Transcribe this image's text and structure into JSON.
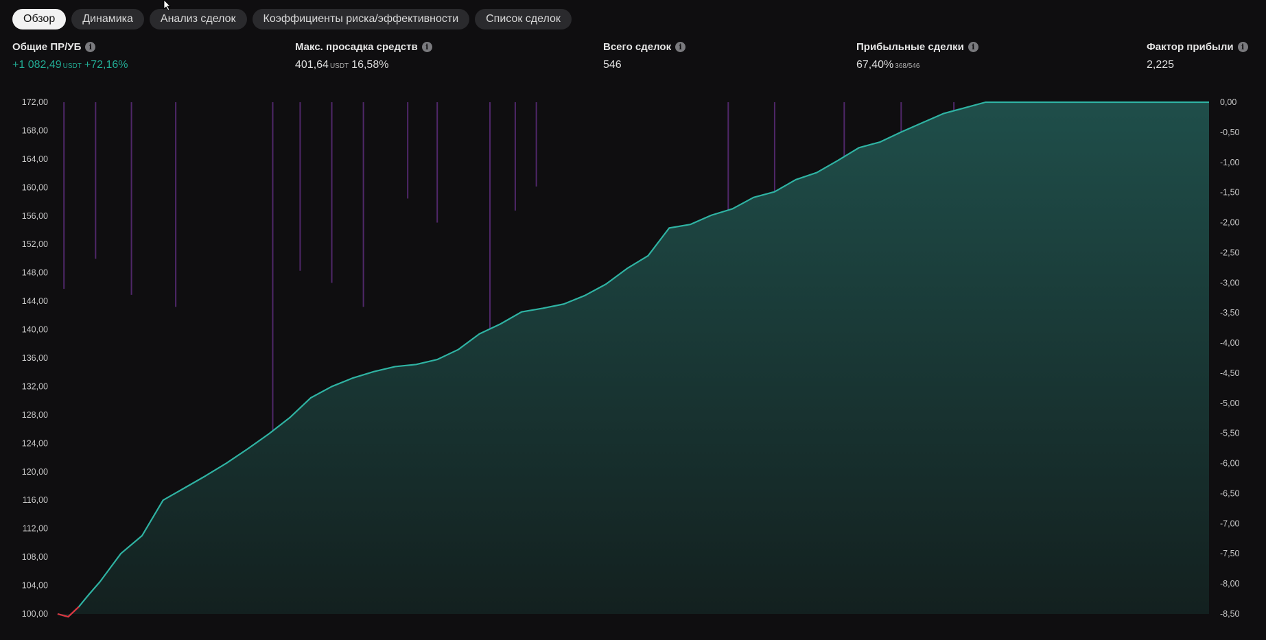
{
  "tabs": [
    "Обзор",
    "Динамика",
    "Анализ сделок",
    "Коэффициенты риска/эффективности",
    "Список сделок"
  ],
  "stats": {
    "net_profit": {
      "label": "Общие ПР/УБ",
      "value": "+1 082,49",
      "unit": "USDT",
      "extra": "+72,16%"
    },
    "max_drawdown": {
      "label": "Макс. просадка средств",
      "value": "401,64",
      "unit": "USDT",
      "extra": "16,58%"
    },
    "total_trades": {
      "label": "Всего сделок",
      "value": "546"
    },
    "profitable": {
      "label": "Прибыльные сделки",
      "value": "67,40%",
      "extra": "368/546"
    },
    "profit_factor": {
      "label": "Фактор прибыли",
      "value": "2,225"
    }
  },
  "colors": {
    "equity_line": "#2fb3a3",
    "equity_fill_top": "#1f4e4a",
    "equity_fill_bottom": "#13201f",
    "drawdown_bars": "#5a2b79",
    "loss_segment": "#e0313d",
    "background": "#0f0e10"
  },
  "chart_data": {
    "type": "area",
    "left_axis": {
      "ticks": [
        "172,00",
        "168,00",
        "164,00",
        "160,00",
        "156,00",
        "152,00",
        "148,00",
        "144,00",
        "140,00",
        "136,00",
        "132,00",
        "128,00",
        "124,00",
        "120,00",
        "116,00",
        "112,00",
        "108,00",
        "104,00",
        "100,00"
      ],
      "range": [
        100,
        172
      ]
    },
    "right_axis": {
      "ticks": [
        "0,00",
        "-0,50",
        "-1,00",
        "-1,50",
        "-2,00",
        "-2,50",
        "-3,00",
        "-3,50",
        "-4,00",
        "-4,50",
        "-5,00",
        "-5,50",
        "-6,00",
        "-6,50",
        "-7,00",
        "-7,50",
        "-8,00",
        "-8,50"
      ],
      "range": [
        -8.5,
        0
      ]
    },
    "equity_series": {
      "x": [
        0,
        5,
        10,
        15,
        20,
        25,
        30,
        40,
        50,
        60,
        70,
        80,
        90,
        100,
        110,
        120,
        130,
        140,
        150,
        160,
        170,
        180,
        190,
        200,
        210,
        220,
        230,
        240,
        250,
        260,
        270,
        280,
        290,
        300,
        310,
        320,
        330,
        340,
        350,
        360,
        370,
        380,
        390,
        400,
        410,
        420,
        430,
        440,
        450,
        460,
        470,
        480,
        490,
        500,
        505,
        510,
        520,
        530,
        540,
        546
      ],
      "values": [
        100.0,
        99.6,
        101.0,
        102.8,
        104.5,
        106.5,
        108.5,
        111.0,
        116.0,
        117.7,
        119.4,
        121.2,
        123.2,
        125.3,
        127.6,
        130.4,
        132.0,
        133.2,
        134.1,
        134.8,
        135.1,
        135.8,
        137.2,
        139.4,
        140.8,
        142.5,
        143.0,
        143.6,
        144.8,
        146.4,
        148.6,
        150.4,
        154.3,
        154.8,
        156.1,
        157.0,
        158.6,
        159.4,
        161.1,
        162.1,
        163.8,
        165.6,
        166.4,
        167.8,
        169.1,
        170.4,
        171.2,
        172.0,
        172.0,
        172.0,
        172.0,
        172.0,
        172.0,
        172.0,
        172.0,
        172.0,
        172.0,
        172.0,
        172.0,
        172.0
      ]
    },
    "drawdown_series": {
      "x": [
        3,
        18,
        35,
        56,
        102,
        115,
        130,
        145,
        166,
        180,
        205,
        217,
        227,
        318,
        340,
        373,
        400,
        425,
        440,
        460,
        480,
        500,
        520,
        540
      ],
      "values": [
        -3.1,
        -2.6,
        -3.2,
        -3.4,
        -6.5,
        -2.8,
        -3.0,
        -3.4,
        -1.6,
        -2.0,
        -4.5,
        -1.8,
        -1.4,
        -2.1,
        -6.1,
        -4.7,
        -8.5,
        -2.1,
        -1.9,
        -2.0,
        -2.7,
        -1.4,
        -1.8,
        -0.9
      ]
    }
  }
}
